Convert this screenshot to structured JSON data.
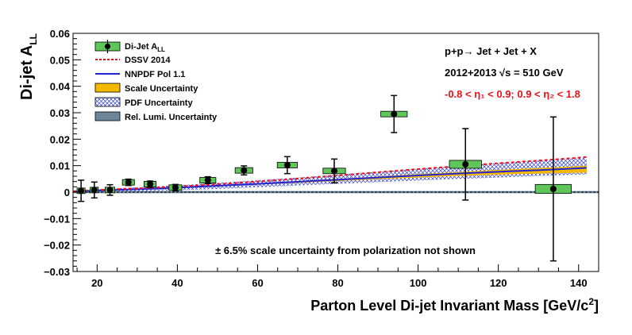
{
  "chart_data": {
    "type": "scatter",
    "xlabel_main": "Parton Level Di-jet Invariant Mass [GeV/c",
    "xlabel_sup": "2",
    "xlabel_end": "]",
    "ylabel_main": "Di-jet A",
    "ylabel_sub": "LL",
    "xlim": [
      14,
      145
    ],
    "ylim": [
      -0.03,
      0.06
    ],
    "xticks": [
      20,
      40,
      60,
      80,
      100,
      120,
      140
    ],
    "yticks": [
      -0.03,
      -0.02,
      -0.01,
      0,
      0.01,
      0.02,
      0.03,
      0.04,
      0.05,
      0.06
    ],
    "ytick_labels": [
      "−0.03",
      "−0.02",
      "−0.01",
      "0",
      "0.01",
      "0.02",
      "0.03",
      "0.04",
      "0.05",
      "0.06"
    ],
    "legend": {
      "position": "top-left",
      "entries": [
        {
          "key": "data",
          "label": "Di-Jet A",
          "sub": "LL"
        },
        {
          "key": "dssv",
          "label": "DSSV 2014"
        },
        {
          "key": "nnpdf",
          "label": "NNPDF Pol 1.1"
        },
        {
          "key": "scale",
          "label": "Scale Uncertainty"
        },
        {
          "key": "pdf",
          "label": "PDF Uncertainty"
        },
        {
          "key": "lumi",
          "label": "Rel. Lumi. Uncertainty"
        }
      ]
    },
    "annotations": {
      "reaction": "p+p→ Jet + Jet + X",
      "energy": "2012+2013  √s = 510 GeV",
      "eta_cut": "-0.8 < η₁ < 0.9; 0.9 < η₂ < 1.8",
      "scale_note": "± 6.5% scale uncertainty from polarization not shown"
    },
    "series": [
      {
        "name": "Di-Jet A_LL",
        "points": [
          {
            "x": 16.0,
            "y": 0.0005,
            "stat": 0.004,
            "sys_dx": 1.0,
            "sys_dy": 0.0003
          },
          {
            "x": 19.3,
            "y": 0.0008,
            "stat": 0.003,
            "sys_dx": 1.0,
            "sys_dy": 0.0003
          },
          {
            "x": 23.2,
            "y": 0.0008,
            "stat": 0.002,
            "sys_dx": 1.2,
            "sys_dy": 0.0004
          },
          {
            "x": 27.8,
            "y": 0.0037,
            "stat": 0.0012,
            "sys_dx": 1.5,
            "sys_dy": 0.0004
          },
          {
            "x": 33.2,
            "y": 0.003,
            "stat": 0.0012,
            "sys_dx": 1.5,
            "sys_dy": 0.0004
          },
          {
            "x": 39.5,
            "y": 0.0017,
            "stat": 0.0012,
            "sys_dx": 1.6,
            "sys_dy": 0.0004
          },
          {
            "x": 47.6,
            "y": 0.0045,
            "stat": 0.0013,
            "sys_dx": 2.0,
            "sys_dy": 0.0006
          },
          {
            "x": 56.6,
            "y": 0.0082,
            "stat": 0.0017,
            "sys_dx": 2.2,
            "sys_dy": 0.0008
          },
          {
            "x": 67.4,
            "y": 0.0102,
            "stat": 0.0032,
            "sys_dx": 2.5,
            "sys_dy": 0.0009
          },
          {
            "x": 79.1,
            "y": 0.008,
            "stat": 0.0045,
            "sys_dx": 2.8,
            "sys_dy": 0.001
          },
          {
            "x": 94.0,
            "y": 0.0295,
            "stat": 0.007,
            "sys_dx": 3.3,
            "sys_dy": 0.001
          },
          {
            "x": 111.8,
            "y": 0.0105,
            "stat": 0.0135,
            "sys_dx": 4.0,
            "sys_dy": 0.0015
          },
          {
            "x": 133.7,
            "y": 0.0012,
            "stat": 0.0272,
            "sys_dx": 4.5,
            "sys_dy": 0.0017
          }
        ]
      },
      {
        "name": "DSSV 2014",
        "x": [
          14,
          20,
          30,
          40,
          50,
          60,
          70,
          80,
          90,
          100,
          110,
          120,
          130,
          140,
          142
        ],
        "y": [
          0.0003,
          0.0008,
          0.0014,
          0.0021,
          0.003,
          0.004,
          0.0051,
          0.0063,
          0.0075,
          0.0087,
          0.0098,
          0.0109,
          0.0119,
          0.013,
          0.0133
        ]
      },
      {
        "name": "NNPDF Pol 1.1",
        "x": [
          14,
          20,
          30,
          40,
          50,
          60,
          70,
          80,
          90,
          100,
          110,
          120,
          130,
          140,
          142
        ],
        "y": [
          0.0002,
          0.0006,
          0.0011,
          0.0017,
          0.0024,
          0.0031,
          0.0039,
          0.0047,
          0.0055,
          0.0063,
          0.007,
          0.0077,
          0.0083,
          0.009,
          0.0092
        ]
      }
    ],
    "bands": {
      "scale_lower": [
        0.0001,
        0.0005,
        0.001,
        0.0015,
        0.0021,
        0.0028,
        0.0035,
        0.0042,
        0.0049,
        0.0055,
        0.0061,
        0.0066,
        0.007,
        0.0073,
        0.0074
      ],
      "scale_upper": [
        0.0003,
        0.0008,
        0.0013,
        0.0019,
        0.0026,
        0.0034,
        0.0042,
        0.005,
        0.0059,
        0.0068,
        0.0076,
        0.0084,
        0.0091,
        0.0098,
        0.01
      ],
      "pdf_lower": [
        -0.0002,
        0.0,
        0.0003,
        0.0007,
        0.0012,
        0.0018,
        0.0025,
        0.0031,
        0.0038,
        0.0044,
        0.005,
        0.0055,
        0.0061,
        0.0066,
        0.0067
      ],
      "pdf_upper": [
        0.0006,
        0.0011,
        0.0018,
        0.0026,
        0.0035,
        0.0045,
        0.0055,
        0.0066,
        0.0077,
        0.0088,
        0.0099,
        0.011,
        0.0119,
        0.0128,
        0.013
      ],
      "lumi_halfwidth": 0.0004
    },
    "colors": {
      "data_box": "#5fc65a",
      "dssv": "#e8141b",
      "nnpdf": "#1f25d0",
      "scale": "#f5b800",
      "pdf": "#2d3ae0",
      "lumi": "#6d8699",
      "eta_text": "#e8141b"
    }
  }
}
